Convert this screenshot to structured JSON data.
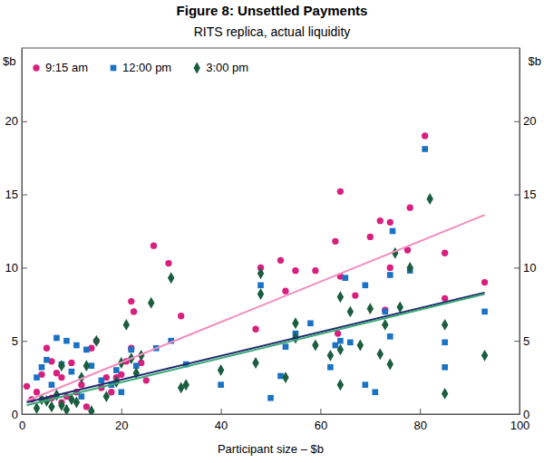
{
  "chart_data": {
    "type": "scatter",
    "title": "Figure 8: Unsettled Payments",
    "subtitle": "RITS replica, actual liquidity",
    "xlabel": "Participant size – $b",
    "ylabel": "$b",
    "xlim": [
      0,
      100
    ],
    "xticks": [
      0,
      20,
      40,
      60,
      80,
      100
    ],
    "ylim": [
      0,
      25
    ],
    "yticks": [
      0,
      5,
      10,
      15,
      20
    ],
    "grid": false,
    "legend": "top-left",
    "series": [
      {
        "name": "9:15 am",
        "type": "scatter",
        "marker": "circle",
        "color": "#d81f7f",
        "x": [
          81,
          64,
          72,
          74,
          78,
          70,
          63,
          26.5,
          29.5,
          52,
          48,
          55,
          59,
          74,
          77.5,
          85,
          85,
          93,
          67,
          64,
          53,
          32,
          22,
          22.5,
          47,
          63.5,
          73,
          1,
          3,
          4,
          5,
          6,
          7,
          8,
          10,
          12,
          14,
          15,
          17,
          19,
          20,
          21,
          22,
          9,
          11,
          13,
          16,
          18,
          24,
          25,
          6,
          8,
          2
        ],
        "values": [
          19,
          15.2,
          13.2,
          13.1,
          14.1,
          12.1,
          11.8,
          11.5,
          10.3,
          10.5,
          10,
          9.8,
          9.8,
          10,
          11.2,
          11,
          7.9,
          9,
          8.1,
          9.4,
          8.4,
          6.7,
          7.7,
          7,
          5.8,
          5.5,
          7.1,
          1.9,
          1.5,
          2.7,
          4.5,
          3.6,
          2.8,
          2.5,
          3.5,
          2,
          4.5,
          5,
          2.5,
          2.5,
          2.7,
          3.6,
          4.5,
          1.2,
          1.5,
          0.5,
          1.8,
          1.5,
          3.5,
          2.3,
          1.1,
          0.8,
          1
        ]
      },
      {
        "name": "12:00 pm",
        "type": "scatter",
        "marker": "square",
        "color": "#1a72c4",
        "x": [
          81,
          74.5,
          74,
          78,
          69,
          65,
          58,
          55,
          53,
          62,
          63,
          64,
          66,
          69,
          71,
          73,
          74,
          85,
          85,
          93,
          50,
          52,
          40,
          33,
          30,
          27,
          22,
          23,
          19,
          18,
          16,
          13,
          11,
          9,
          7,
          5,
          4,
          3,
          10,
          12,
          14,
          8,
          6,
          20,
          48
        ],
        "values": [
          18.1,
          12.5,
          9.5,
          9.8,
          8.8,
          9.3,
          6.2,
          5.5,
          4.6,
          3.2,
          4.7,
          5,
          4.9,
          2,
          1.5,
          7,
          5.3,
          3.2,
          4.9,
          7,
          1.1,
          2.6,
          2,
          3.4,
          5,
          4.5,
          4.4,
          3.3,
          3,
          2,
          2.3,
          4.4,
          4.7,
          5,
          5.2,
          3.7,
          3.2,
          2.5,
          2.9,
          1.2,
          3.3,
          3.4,
          2,
          1.5,
          8.8
        ]
      },
      {
        "name": "3:00 pm",
        "type": "scatter",
        "marker": "diamond",
        "color": "#1b5e3f",
        "x": [
          82,
          75,
          78,
          30,
          48,
          48,
          55,
          55,
          59,
          64,
          66,
          68,
          70,
          72,
          73,
          74,
          76,
          85,
          85,
          93,
          64,
          64,
          53,
          47,
          40,
          33,
          32,
          26,
          21,
          22,
          23,
          19,
          17,
          15,
          13,
          12,
          10,
          8,
          8,
          7,
          6,
          5,
          4,
          3,
          9,
          11,
          14,
          20,
          24,
          62
        ],
        "values": [
          14.7,
          11,
          10,
          9.3,
          9.6,
          8.2,
          6.2,
          5.2,
          4.7,
          8,
          7,
          4.7,
          7.2,
          4.1,
          6.1,
          3.4,
          7.3,
          6.1,
          1.4,
          4,
          4.4,
          2,
          2.5,
          3.5,
          3,
          2,
          1.8,
          7.6,
          6.1,
          3.8,
          2.8,
          2.2,
          1.2,
          5,
          3.3,
          2.5,
          1,
          3.3,
          0.6,
          1.3,
          0.5,
          0.9,
          1,
          0.4,
          0.3,
          0.8,
          0.2,
          3.5,
          4,
          4
        ]
      },
      {
        "type": "line",
        "color": "#f28cc0",
        "x": [
          1,
          93
        ],
        "values": [
          0.9,
          13.6
        ]
      },
      {
        "type": "line",
        "color": "#1f2a6b",
        "x": [
          1,
          93
        ],
        "values": [
          0.8,
          8.3
        ]
      },
      {
        "type": "line",
        "color": "#3aa877",
        "x": [
          1,
          93
        ],
        "values": [
          0.6,
          8.2
        ]
      }
    ]
  }
}
